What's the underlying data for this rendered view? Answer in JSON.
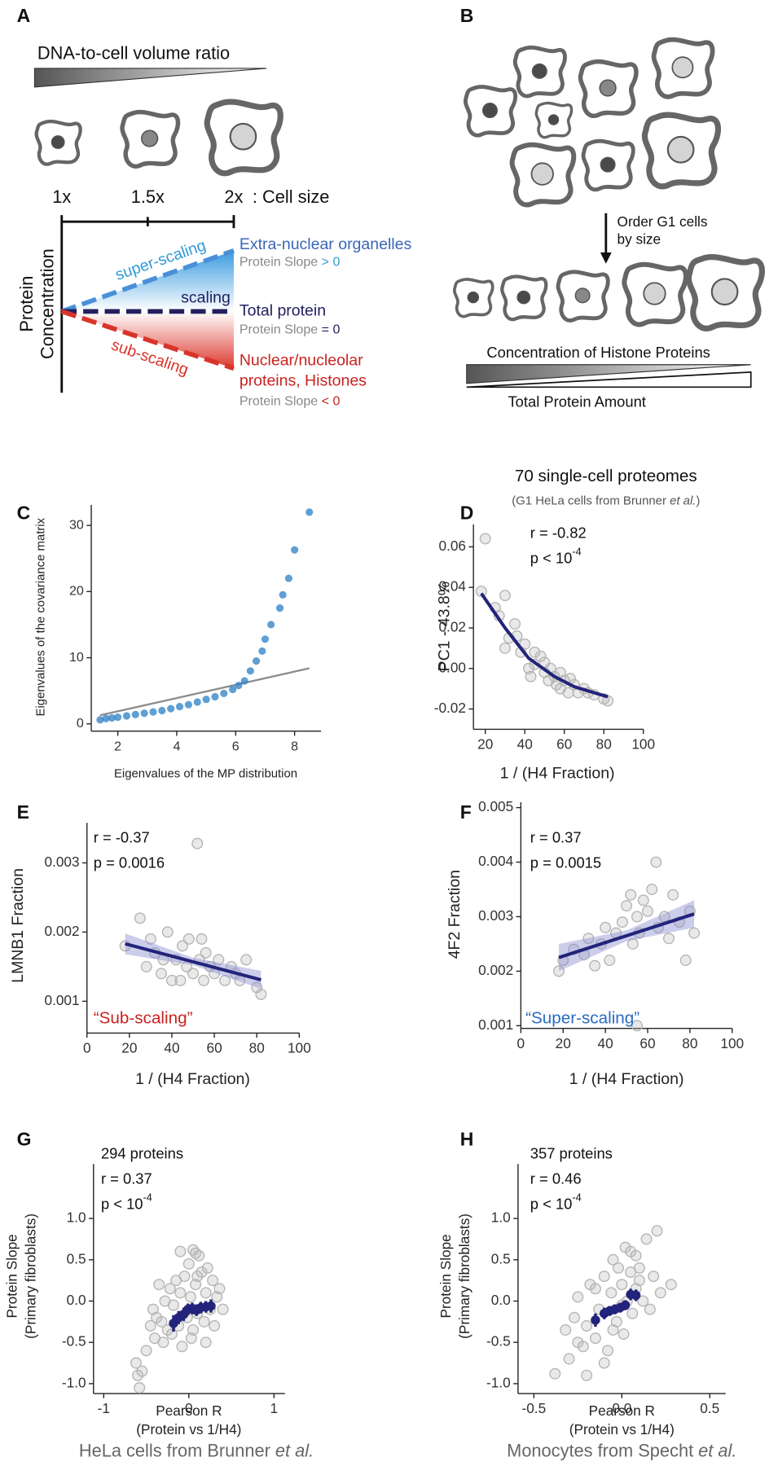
{
  "diagram_a": {
    "panel": "A",
    "ratio_label": "DNA-to-cell volume ratio",
    "sizes": [
      "1x",
      "1.5x",
      "2x"
    ],
    "size_label": ": Cell size",
    "y_label": [
      "Protein",
      "Concentration"
    ],
    "trends": [
      "super-scaling",
      "scaling",
      "sub-scaling"
    ],
    "groups": [
      {
        "name": [
          "Extra-nuclear organelles"
        ],
        "slope": [
          "Protein Slope ",
          "> 0"
        ]
      },
      {
        "name": [
          "Total protein"
        ],
        "slope": [
          "Protein Slope ",
          "= 0"
        ]
      },
      {
        "name": [
          "Nuclear/nucleolar",
          "proteins, Histones"
        ],
        "slope": [
          "Protein Slope ",
          "< 0"
        ]
      }
    ]
  },
  "diagram_b": {
    "panel": "B",
    "step": [
      "Order G1 cells",
      "by size"
    ],
    "histone_label": "Concentration of Histone Proteins",
    "total_label": "Total Protein Amount"
  },
  "chart_data": [
    {
      "type": "scatter",
      "panel": "C",
      "xlabel": "Eigenvalues of the MP distribution",
      "ylabel": "Eigenvalues of the covariance matrix",
      "xlim": [
        1.1,
        8.9
      ],
      "ylim": [
        -1.1,
        33.1
      ],
      "xticks": [
        2,
        4,
        6,
        8
      ],
      "yticks": [
        0,
        10,
        20,
        30
      ],
      "series": [
        {
          "kind": "line",
          "color": "#8c8c8c",
          "x": [
            1.4,
            8.5
          ],
          "y": [
            1.3,
            8.4
          ]
        },
        {
          "kind": "points",
          "color": "#2b7fc4",
          "x": [
            1.4,
            1.6,
            1.8,
            2.0,
            2.3,
            2.6,
            2.9,
            3.2,
            3.5,
            3.8,
            4.1,
            4.4,
            4.7,
            5.0,
            5.3,
            5.6,
            5.9,
            6.1,
            6.3,
            6.5,
            6.7,
            6.9,
            7.0,
            7.2,
            7.5,
            7.6,
            7.8,
            8.0,
            8.5
          ],
          "y": [
            0.6,
            0.8,
            0.9,
            1.0,
            1.2,
            1.4,
            1.6,
            1.8,
            2.0,
            2.3,
            2.6,
            2.9,
            3.3,
            3.7,
            4.1,
            4.6,
            5.2,
            5.8,
            6.5,
            8,
            9.5,
            11,
            12.8,
            15,
            17.5,
            19.5,
            22,
            26.3,
            32
          ]
        }
      ]
    },
    {
      "type": "scatter",
      "panel": "D",
      "title": "70 single-cell proteomes",
      "subtitle": [
        "(G1 HeLa cells from Brunner ",
        "et al.",
        ")"
      ],
      "annotations": [
        "r = -0.82",
        "p < 10"
      ],
      "p_exponent": "-4",
      "xlabel": "1 / (H4 Fraction)",
      "ylabel": "PC1 - 43.8%",
      "xlim": [
        14,
        100
      ],
      "ylim": [
        -0.03,
        0.071
      ],
      "xticks": [
        20,
        40,
        60,
        80,
        100
      ],
      "yticks": [
        0.06,
        0.04,
        0.02,
        {
          "value": 0,
          "label": "0.00"
        },
        -0.02
      ],
      "series": [
        {
          "kind": "points",
          "color": "#b5b5b5",
          "x": [
            18,
            20,
            25,
            27,
            30,
            30,
            32,
            35,
            36,
            38,
            40,
            42,
            43,
            45,
            45,
            48,
            50,
            50,
            52,
            53,
            55,
            56,
            58,
            58,
            60,
            62,
            63,
            65,
            67,
            70,
            72,
            75,
            80,
            82
          ],
          "y": [
            0.038,
            0.064,
            0.03,
            0.026,
            0.036,
            0.01,
            0.015,
            0.022,
            0.016,
            0.008,
            0.012,
            0,
            -0.004,
            0.002,
            0.008,
            0.006,
            -0.002,
            0.003,
            -0.006,
            0,
            -0.004,
            -0.008,
            -0.002,
            -0.01,
            -0.006,
            -0.012,
            -0.005,
            -0.008,
            -0.012,
            -0.01,
            -0.012,
            -0.013,
            -0.015,
            -0.016
          ]
        },
        {
          "kind": "line",
          "color": "#22237a",
          "x": [
            18,
            30,
            42,
            55,
            65,
            82
          ],
          "y": [
            0.037,
            0.02,
            0.005,
            -0.004,
            -0.009,
            -0.014
          ]
        }
      ]
    },
    {
      "type": "scatter",
      "panel": "E",
      "annotations": [
        "r = -0.37",
        "p = 0.0016"
      ],
      "note": {
        "text": "“Sub-scaling”",
        "color": "#c8231f"
      },
      "xlabel": "1 / (H4 Fraction)",
      "ylabel": "LMNB1 Fraction",
      "xlim": [
        0,
        100
      ],
      "ylim": [
        0.00054,
        0.00358
      ],
      "xticks": [
        0,
        20,
        40,
        60,
        80,
        100
      ],
      "yticks": [
        0.003,
        0.002,
        0.001
      ],
      "series": [
        {
          "kind": "points",
          "color": "#b5b5b5",
          "x": [
            18,
            25,
            28,
            30,
            32,
            35,
            38,
            40,
            42,
            45,
            47,
            48,
            50,
            52,
            53,
            55,
            56,
            58,
            60,
            62,
            65,
            68,
            70,
            72,
            75,
            80,
            82,
            44,
            54,
            36
          ],
          "y": [
            0.0018,
            0.0022,
            0.0015,
            0.0019,
            0.0017,
            0.0014,
            0.002,
            0.0013,
            0.0016,
            0.0018,
            0.0015,
            0.0019,
            0.0014,
            0.00328,
            0.0016,
            0.0013,
            0.0017,
            0.0015,
            0.0014,
            0.0016,
            0.0013,
            0.0015,
            0.0014,
            0.0013,
            0.0016,
            0.0012,
            0.0011,
            0.0013,
            0.0019,
            0.0016
          ]
        },
        {
          "kind": "band",
          "color": "#8d90d2",
          "x": [
            18,
            50,
            82
          ],
          "lower": [
            0.00168,
            0.00152,
            0.00118
          ],
          "upper": [
            0.00198,
            0.00163,
            0.00144
          ]
        },
        {
          "kind": "line",
          "color": "#22237a",
          "x": [
            18,
            82
          ],
          "y": [
            0.00183,
            0.00131
          ]
        }
      ]
    },
    {
      "type": "scatter",
      "panel": "F",
      "annotations": [
        "r = 0.37",
        "p = 0.0015"
      ],
      "note": {
        "text": "“Super-scaling”",
        "color": "#2a6bc0"
      },
      "xlabel": "1 / (H4 Fraction)",
      "ylabel": "4F2 Fraction",
      "xlim": [
        0,
        100
      ],
      "ylim": [
        0.00095,
        0.0051
      ],
      "xticks": [
        0,
        20,
        40,
        60,
        80,
        100
      ],
      "yticks": [
        0.005,
        0.004,
        0.003,
        0.002,
        0.001
      ],
      "series": [
        {
          "kind": "points",
          "color": "#b5b5b5",
          "x": [
            18,
            20,
            25,
            30,
            32,
            35,
            38,
            40,
            42,
            45,
            48,
            50,
            52,
            53,
            55,
            56,
            58,
            60,
            62,
            64,
            65,
            68,
            70,
            72,
            75,
            78,
            80,
            82,
            55
          ],
          "y": [
            0.002,
            0.0022,
            0.0024,
            0.0023,
            0.0026,
            0.0021,
            0.0025,
            0.0028,
            0.0022,
            0.0027,
            0.0029,
            0.0032,
            0.0034,
            0.0025,
            0.003,
            0.0027,
            0.0033,
            0.0031,
            0.0035,
            0.004,
            0.0028,
            0.003,
            0.0026,
            0.0034,
            0.0029,
            0.0022,
            0.0031,
            0.0027,
            0.001
          ]
        },
        {
          "kind": "band",
          "color": "#8d90d2",
          "x": [
            18,
            50,
            82
          ],
          "lower": [
            0.002,
            0.00255,
            0.0028
          ],
          "upper": [
            0.0025,
            0.00275,
            0.0033
          ]
        },
        {
          "kind": "line",
          "color": "#22237a",
          "x": [
            18,
            82
          ],
          "y": [
            0.00225,
            0.00305
          ]
        }
      ]
    },
    {
      "type": "scatter",
      "panel": "G",
      "title": "294 proteins",
      "annotations": [
        "r = 0.37",
        "p < 10"
      ],
      "p_exponent": "-4",
      "xlabel": [
        "Pearson R",
        "(Protein vs 1/H4)"
      ],
      "ylabel": [
        "Protein Slope",
        "(Primary fibroblasts)"
      ],
      "caption": [
        "HeLa cells from Brunner ",
        "et al."
      ],
      "xlim": [
        -1.12,
        1.13
      ],
      "ylim": [
        -1.12,
        1.66
      ],
      "xticks": [
        -1,
        0,
        1
      ],
      "yticks": [
        {
          "value": 1,
          "label": "1.0"
        },
        0.5,
        {
          "value": 0,
          "label": "0.0"
        },
        -0.5,
        {
          "value": -1,
          "label": "-1.0"
        }
      ],
      "series": [
        {
          "kind": "points",
          "color": "#b5b5b5",
          "x": [
            -0.62,
            -0.58,
            -0.55,
            -0.5,
            -0.45,
            -0.42,
            -0.4,
            -0.35,
            -0.32,
            -0.3,
            -0.28,
            -0.25,
            -0.22,
            -0.2,
            -0.18,
            -0.15,
            -0.12,
            -0.1,
            -0.08,
            -0.05,
            -0.02,
            0,
            0.02,
            0.05,
            0.05,
            0.08,
            0.1,
            0.12,
            0.15,
            0.18,
            0.2,
            0.22,
            0.25,
            0.28,
            0.3,
            0.33,
            0.36,
            0.4,
            -0.38,
            -0.1,
            0.03,
            0.08,
            0.1,
            -0.6,
            0.2
          ],
          "y": [
            -0.75,
            -1.05,
            -0.85,
            -0.6,
            -0.3,
            -0.1,
            -0.45,
            0.2,
            -0.25,
            -0.5,
            0,
            -0.35,
            0.15,
            -0.4,
            -0.05,
            0.25,
            -0.3,
            0.1,
            -0.55,
            0.3,
            -0.2,
            0.45,
            0.05,
            0.62,
            -0.35,
            0.2,
            -0.15,
            0.55,
            0.35,
            -0.25,
            0.1,
            0.4,
            -0.1,
            0.25,
            -0.3,
            0.05,
            0.15,
            -0.1,
            -0.2,
            0.6,
            -0.45,
            0.58,
            0.3,
            -0.9,
            -0.5
          ]
        },
        {
          "kind": "errorbar",
          "color": "#22237a",
          "x": [
            -0.18,
            -0.12,
            -0.06,
            -0.01,
            0.04,
            0.09,
            0.14,
            0.2,
            0.26
          ],
          "y": [
            -0.27,
            -0.2,
            -0.16,
            -0.1,
            -0.09,
            -0.11,
            -0.08,
            -0.07,
            -0.06
          ],
          "error": [
            0.1,
            0.08,
            0.08,
            0.07,
            0.07,
            0.07,
            0.07,
            0.07,
            0.08
          ]
        }
      ]
    },
    {
      "type": "scatter",
      "panel": "H",
      "title": "357 proteins",
      "annotations": [
        "r = 0.46",
        "p < 10"
      ],
      "p_exponent": "-4",
      "xlabel": [
        "Pearson R",
        "(Protein vs 1/H4)"
      ],
      "ylabel": [
        "Protein Slope",
        "(Primary fibroblasts)"
      ],
      "caption": [
        "Monocytes from Specht ",
        "et al."
      ],
      "xlim": [
        -0.59,
        0.59
      ],
      "ylim": [
        -1.12,
        1.66
      ],
      "xticks": [
        -0.5,
        {
          "value": 0,
          "label": "0.0"
        },
        0.5
      ],
      "yticks": [
        {
          "value": 1,
          "label": "1.0"
        },
        0.5,
        {
          "value": 0,
          "label": "0.0"
        },
        -0.5,
        {
          "value": -1,
          "label": "-1.0"
        }
      ],
      "series": [
        {
          "kind": "points",
          "color": "#b5b5b5",
          "x": [
            -0.38,
            -0.32,
            -0.3,
            -0.27,
            -0.25,
            -0.22,
            -0.2,
            -0.18,
            -0.15,
            -0.13,
            -0.1,
            -0.08,
            -0.06,
            -0.05,
            -0.03,
            -0.02,
            0,
            0.01,
            0.02,
            0.03,
            0.05,
            0.06,
            0.08,
            0.1,
            0.12,
            0.14,
            0.16,
            0.18,
            0.2,
            0.22,
            -0.2,
            -0.1,
            0,
            0.05,
            0.1,
            -0.15,
            -0.05,
            0.08,
            0.28,
            -0.25
          ],
          "y": [
            -0.88,
            -0.35,
            -0.7,
            -0.2,
            0.05,
            -0.55,
            -0.3,
            0.2,
            -0.45,
            -0.1,
            0.3,
            -0.6,
            0.1,
            0.5,
            -0.25,
            0.4,
            0.2,
            -0.4,
            0.65,
            0,
            0.35,
            -0.15,
            0.55,
            0.25,
            0,
            0.75,
            -0.1,
            0.3,
            0.85,
            0.1,
            -0.9,
            -0.75,
            -0.05,
            0.6,
            0.4,
            0.15,
            -0.35,
            0.15,
            0.2,
            -0.5
          ]
        },
        {
          "kind": "errorbar",
          "color": "#22237a",
          "x": [
            -0.15,
            -0.1,
            -0.07,
            -0.04,
            -0.01,
            0.02,
            0.05,
            0.08
          ],
          "y": [
            -0.23,
            -0.15,
            -0.12,
            -0.1,
            -0.08,
            -0.05,
            0.08,
            0.07
          ],
          "error": [
            0.08,
            0.07,
            0.06,
            0.06,
            0.06,
            0.06,
            0.07,
            0.07
          ]
        }
      ]
    }
  ]
}
